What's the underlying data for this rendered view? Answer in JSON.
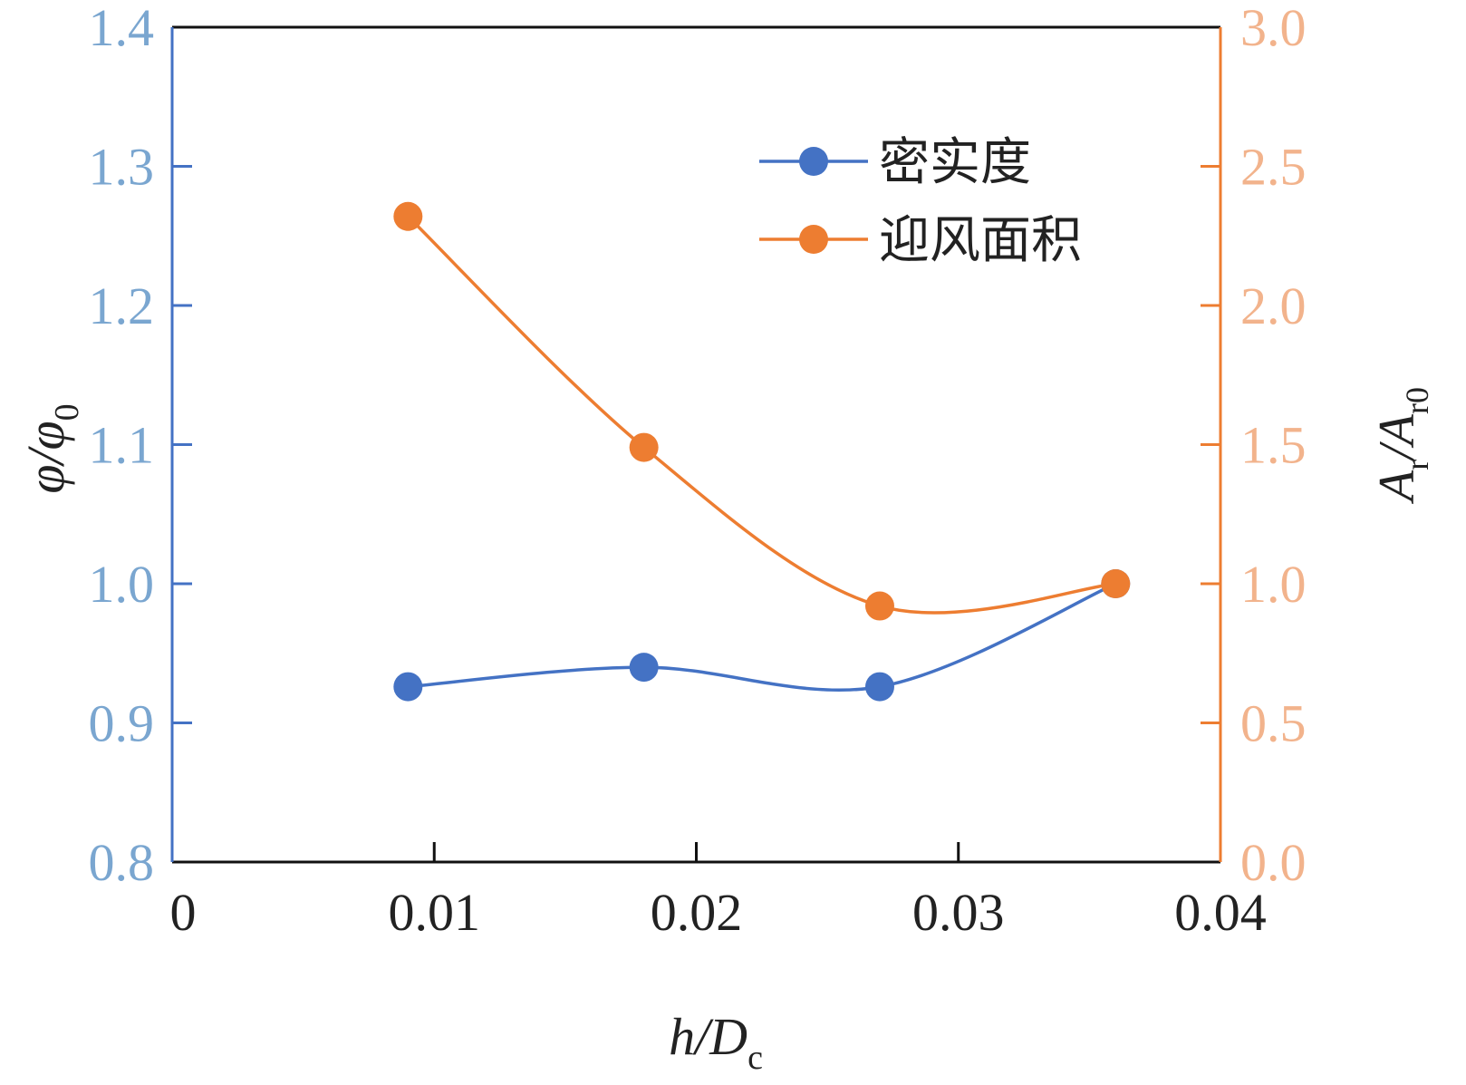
{
  "chart_data": {
    "type": "line",
    "x": [
      0.009,
      0.018,
      0.027,
      0.036
    ],
    "xlim": [
      0,
      0.04
    ],
    "x_ticks": [
      "0",
      "0.01",
      "0.02",
      "0.03",
      "0.04"
    ],
    "x_tick_values": [
      0,
      0.01,
      0.02,
      0.03,
      0.04
    ],
    "xlabel": {
      "main": "h/D",
      "sub": "c"
    },
    "y_left": {
      "label": {
        "main": "φ/φ",
        "sub": "0"
      },
      "lim": [
        0.8,
        1.4
      ],
      "ticks": [
        "0.8",
        "0.9",
        "1.0",
        "1.1",
        "1.2",
        "1.3",
        "1.4"
      ],
      "tick_values": [
        0.8,
        0.9,
        1.0,
        1.1,
        1.2,
        1.3,
        1.4
      ],
      "axis_color": "#4472c4",
      "tick_label_color": "#7aa6d0"
    },
    "y_right": {
      "label": {
        "main": "A",
        "sub1": "r",
        "mid": "/A",
        "sub2": "r0"
      },
      "lim": [
        0.0,
        3.0
      ],
      "ticks": [
        "0.0",
        "0.5",
        "1.0",
        "1.5",
        "2.0",
        "2.5",
        "3.0"
      ],
      "tick_values": [
        0.0,
        0.5,
        1.0,
        1.5,
        2.0,
        2.5,
        3.0
      ],
      "axis_color": "#ed7d31",
      "tick_label_color": "#f2b38c"
    },
    "series": [
      {
        "name": "密实度",
        "axis": "left",
        "color": "#4472c4",
        "values": [
          0.926,
          0.94,
          0.926,
          1.0
        ]
      },
      {
        "name": "迎风面积",
        "axis": "right",
        "color": "#ed7d31",
        "values": [
          2.32,
          1.49,
          0.92,
          1.0
        ]
      }
    ],
    "legend_position": "top-right",
    "grid": false
  }
}
